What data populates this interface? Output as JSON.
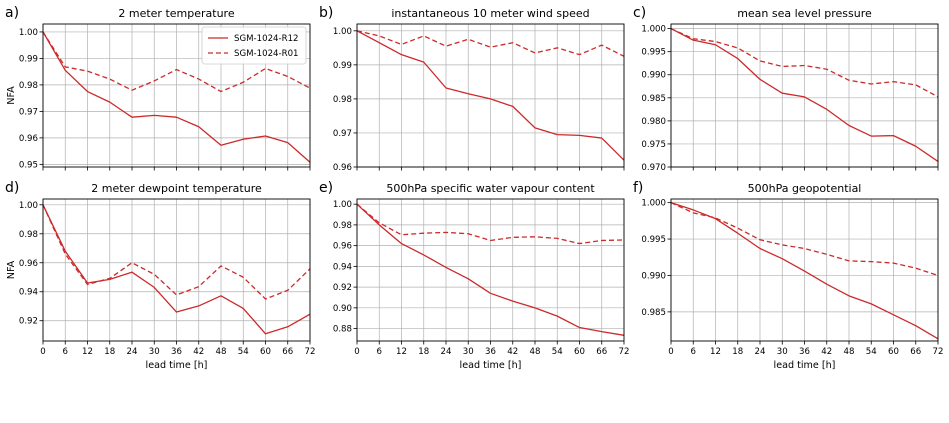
{
  "chart_data": [
    {
      "panel_label": "a)",
      "type": "line",
      "title": "2 meter temperature",
      "xlabel": "",
      "ylabel": "NFA",
      "xlim": [
        0,
        72
      ],
      "ylim": [
        0.949,
        1.003
      ],
      "yticks": [
        0.95,
        0.96,
        0.97,
        0.98,
        0.99,
        1.0
      ],
      "yfmt": 2,
      "show_xticklabels": false,
      "grid": true,
      "legend": "top-right",
      "x": [
        0,
        6,
        12,
        18,
        24,
        30,
        36,
        42,
        48,
        54,
        60,
        66,
        72
      ],
      "series": [
        {
          "name": "SGM-1024-R12",
          "style": "solid",
          "values": [
            1.0,
            0.9855,
            0.9775,
            0.9735,
            0.9678,
            0.9685,
            0.9678,
            0.9642,
            0.9572,
            0.9595,
            0.9607,
            0.9582,
            0.9508
          ]
        },
        {
          "name": "SGM-1024-R01",
          "style": "dashed",
          "values": [
            1.0,
            0.9868,
            0.9852,
            0.9822,
            0.978,
            0.9815,
            0.9858,
            0.9822,
            0.9775,
            0.981,
            0.9862,
            0.9832,
            0.9788
          ]
        }
      ]
    },
    {
      "panel_label": "b)",
      "type": "line",
      "title": "instantaneous 10 meter wind speed",
      "xlabel": "",
      "ylabel": "",
      "xlim": [
        0,
        72
      ],
      "ylim": [
        0.96,
        1.002
      ],
      "yticks": [
        0.96,
        0.97,
        0.98,
        0.99,
        1.0
      ],
      "yfmt": 2,
      "show_xticklabels": false,
      "grid": true,
      "x": [
        0,
        6,
        12,
        18,
        24,
        30,
        36,
        42,
        48,
        54,
        60,
        66,
        72
      ],
      "series": [
        {
          "name": "SGM-1024-R12",
          "style": "solid",
          "values": [
            1.0,
            0.9965,
            0.993,
            0.9908,
            0.9832,
            0.9815,
            0.98,
            0.9778,
            0.9715,
            0.9695,
            0.9693,
            0.9685,
            0.962
          ]
        },
        {
          "name": "SGM-1024-R01",
          "style": "dashed",
          "values": [
            1.0,
            0.9985,
            0.996,
            0.9985,
            0.9955,
            0.9975,
            0.9952,
            0.9965,
            0.9935,
            0.995,
            0.993,
            0.9958,
            0.9925
          ]
        }
      ]
    },
    {
      "panel_label": "c)",
      "type": "line",
      "title": "mean sea level pressure",
      "xlabel": "",
      "ylabel": "",
      "xlim": [
        0,
        72
      ],
      "ylim": [
        0.97,
        1.001
      ],
      "yticks": [
        0.97,
        0.975,
        0.98,
        0.985,
        0.99,
        0.995,
        1.0
      ],
      "yfmt": 3,
      "show_xticklabels": false,
      "grid": true,
      "x": [
        0,
        6,
        12,
        18,
        24,
        30,
        36,
        42,
        48,
        54,
        60,
        66,
        72
      ],
      "series": [
        {
          "name": "SGM-1024-R12",
          "style": "solid",
          "values": [
            1.0,
            0.9975,
            0.9965,
            0.9935,
            0.989,
            0.986,
            0.9852,
            0.9825,
            0.979,
            0.9767,
            0.9768,
            0.9745,
            0.9712
          ]
        },
        {
          "name": "SGM-1024-R01",
          "style": "dashed",
          "values": [
            1.0,
            0.9978,
            0.9972,
            0.9958,
            0.993,
            0.9918,
            0.992,
            0.9912,
            0.9888,
            0.988,
            0.9885,
            0.9878,
            0.9852
          ]
        }
      ]
    },
    {
      "panel_label": "d)",
      "type": "line",
      "title": "2 meter dewpoint temperature",
      "xlabel": "lead time [h]",
      "ylabel": "NFA",
      "xlim": [
        0,
        72
      ],
      "ylim": [
        0.906,
        1.004
      ],
      "yticks": [
        0.92,
        0.94,
        0.96,
        0.98,
        1.0
      ],
      "yfmt": 2,
      "show_xticklabels": true,
      "grid": true,
      "x": [
        0,
        6,
        12,
        18,
        24,
        30,
        36,
        42,
        48,
        54,
        60,
        66,
        72
      ],
      "series": [
        {
          "name": "SGM-1024-R12",
          "style": "solid",
          "values": [
            1.0,
            0.968,
            0.946,
            0.9485,
            0.9535,
            0.943,
            0.926,
            0.9302,
            0.9372,
            0.9285,
            0.911,
            0.9158,
            0.9245
          ]
        },
        {
          "name": "SGM-1024-R01",
          "style": "dashed",
          "values": [
            1.0,
            0.966,
            0.945,
            0.9492,
            0.96,
            0.952,
            0.9378,
            0.9435,
            0.9578,
            0.95,
            0.935,
            0.941,
            0.9558
          ]
        }
      ]
    },
    {
      "panel_label": "e)",
      "type": "line",
      "title": "500hPa specific water vapour content",
      "xlabel": "lead time [h]",
      "ylabel": "",
      "xlim": [
        0,
        72
      ],
      "ylim": [
        0.868,
        1.005
      ],
      "yticks": [
        0.88,
        0.9,
        0.92,
        0.94,
        0.96,
        0.98,
        1.0
      ],
      "yfmt": 2,
      "show_xticklabels": true,
      "grid": true,
      "x": [
        0,
        6,
        12,
        18,
        24,
        30,
        36,
        42,
        48,
        54,
        60,
        66,
        72
      ],
      "series": [
        {
          "name": "SGM-1024-R12",
          "style": "solid",
          "values": [
            1.0,
            0.98,
            0.962,
            0.951,
            0.939,
            0.928,
            0.914,
            0.9065,
            0.9,
            0.892,
            0.881,
            0.877,
            0.8735
          ]
        },
        {
          "name": "SGM-1024-R01",
          "style": "dashed",
          "values": [
            1.0,
            0.982,
            0.9705,
            0.972,
            0.9728,
            0.9715,
            0.965,
            0.968,
            0.9685,
            0.967,
            0.962,
            0.965,
            0.9655
          ]
        }
      ]
    },
    {
      "panel_label": "f)",
      "type": "line",
      "title": "500hPa geopotential",
      "xlabel": "lead time [h]",
      "ylabel": "",
      "xlim": [
        0,
        72
      ],
      "ylim": [
        0.981,
        1.0005
      ],
      "yticks": [
        0.985,
        0.99,
        0.995,
        1.0
      ],
      "yfmt": 3,
      "show_xticklabels": true,
      "grid": true,
      "x": [
        0,
        6,
        12,
        18,
        24,
        30,
        36,
        42,
        48,
        54,
        60,
        66,
        72
      ],
      "series": [
        {
          "name": "SGM-1024-R12",
          "style": "solid",
          "values": [
            1.0,
            0.999,
            0.9978,
            0.9958,
            0.9937,
            0.9923,
            0.9906,
            0.9888,
            0.9872,
            0.9861,
            0.9846,
            0.9831,
            0.9813
          ]
        },
        {
          "name": "SGM-1024-R01",
          "style": "dashed",
          "values": [
            1.0,
            0.9986,
            0.9979,
            0.9965,
            0.9949,
            0.9942,
            0.9937,
            0.9929,
            0.992,
            0.9919,
            0.9917,
            0.991,
            0.99
          ]
        }
      ]
    }
  ],
  "colors": {
    "series": "#cc2a2a",
    "grid": "#b0b0b0",
    "axis": "#000000"
  },
  "x_ticks": [
    0,
    6,
    12,
    18,
    24,
    30,
    36,
    42,
    48,
    54,
    60,
    66,
    72
  ]
}
